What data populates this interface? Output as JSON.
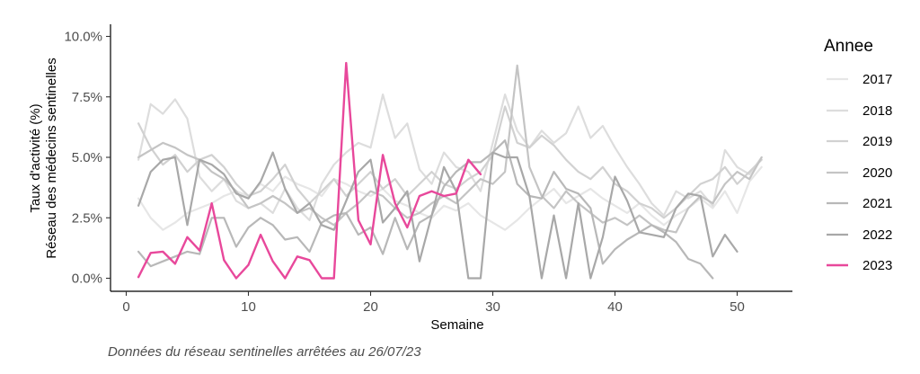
{
  "chart_data": {
    "type": "line",
    "xlabel": "Semaine",
    "ylabel_line1": "Taux d'activité (%)",
    "ylabel_line2": "Réseau des médecins sentinelles",
    "xlim": [
      0,
      55
    ],
    "ylim": [
      0,
      10
    ],
    "x_ticks": [
      0,
      10,
      20,
      30,
      40,
      50
    ],
    "x_tick_labels": [
      "0",
      "10",
      "20",
      "30",
      "40",
      "50"
    ],
    "y_ticks": [
      0,
      2.5,
      5,
      7.5,
      10
    ],
    "y_tick_labels": [
      "0.0%",
      "2.5%",
      "5.0%",
      "7.5%",
      "10.0%"
    ],
    "grid": false,
    "legend_title": "Annee",
    "legend_position": "right",
    "caption": "Données du réseau sentinelles arrêtées au  26/07/23",
    "series": [
      {
        "name": "2017",
        "color": "#e6e6e6",
        "x": [
          1,
          2,
          3,
          4,
          5,
          6,
          7,
          8,
          9,
          10,
          11,
          12,
          13,
          14,
          15,
          16,
          17,
          18,
          19,
          20,
          21,
          22,
          23,
          24,
          25,
          26,
          27,
          28,
          29,
          30,
          31,
          32,
          33,
          34,
          35,
          36,
          37,
          38,
          39,
          40,
          41,
          42,
          43,
          44,
          45,
          46,
          47,
          48,
          49,
          50,
          51,
          52
        ],
        "values": [
          3.3,
          2.5,
          2.0,
          2.3,
          2.7,
          2.9,
          3.1,
          3.4,
          3.6,
          3.4,
          3.9,
          3.6,
          4.2,
          3.9,
          3.7,
          3.4,
          4.1,
          3.9,
          3.6,
          3.4,
          3.7,
          3.2,
          3.0,
          2.7,
          2.5,
          3.0,
          2.8,
          3.1,
          2.6,
          2.3,
          2.0,
          2.4,
          2.9,
          3.3,
          3.7,
          3.1,
          3.4,
          3.7,
          3.3,
          3.0,
          2.7,
          3.1,
          2.6,
          2.2,
          2.6,
          2.9,
          3.3,
          2.9,
          3.6,
          2.7,
          4.0,
          4.6
        ]
      },
      {
        "name": "2018",
        "color": "#dddddd",
        "x": [
          1,
          2,
          3,
          4,
          5,
          6,
          7,
          8,
          9,
          10,
          11,
          12,
          13,
          14,
          15,
          16,
          17,
          18,
          19,
          20,
          21,
          22,
          23,
          24,
          25,
          26,
          27,
          28,
          29,
          30,
          31,
          32,
          33,
          34,
          35,
          36,
          37,
          38,
          39,
          40,
          41,
          42,
          43,
          44,
          45,
          46,
          47,
          48,
          49,
          50,
          51,
          52
        ],
        "values": [
          4.9,
          7.2,
          6.8,
          7.4,
          6.6,
          4.2,
          3.6,
          4.1,
          3.2,
          2.9,
          3.1,
          2.7,
          3.7,
          2.9,
          2.4,
          3.9,
          4.7,
          5.2,
          5.6,
          5.4,
          7.6,
          5.8,
          6.4,
          4.5,
          3.9,
          5.2,
          4.6,
          4.4,
          3.6,
          5.6,
          7.6,
          6.1,
          5.4,
          6.1,
          5.6,
          6.0,
          7.1,
          5.8,
          6.3,
          5.4,
          4.6,
          3.9,
          3.1,
          2.6,
          3.6,
          3.3,
          3.6,
          3.0,
          5.3,
          4.6,
          4.3,
          5.0
        ]
      },
      {
        "name": "2019",
        "color": "#d1d1d1",
        "x": [
          1,
          2,
          3,
          4,
          5,
          6,
          7,
          8,
          9,
          10,
          11,
          12,
          13,
          14,
          15,
          16,
          17,
          18,
          19,
          20,
          21,
          22,
          23,
          24,
          25,
          26,
          27,
          28,
          29,
          30,
          31,
          32,
          33,
          34,
          35,
          36,
          37,
          38,
          39,
          40,
          41,
          42,
          43,
          44,
          45,
          46,
          47,
          48,
          49,
          50,
          51,
          52
        ],
        "values": [
          6.4,
          5.4,
          4.7,
          5.1,
          4.4,
          4.9,
          5.1,
          4.6,
          3.9,
          3.4,
          3.6,
          4.1,
          4.7,
          3.7,
          3.1,
          3.6,
          4.1,
          3.4,
          3.9,
          4.4,
          3.7,
          4.1,
          3.4,
          3.9,
          4.4,
          3.9,
          3.7,
          4.1,
          4.4,
          5.1,
          7.1,
          5.6,
          5.4,
          5.9,
          5.5,
          4.9,
          4.4,
          4.1,
          4.6,
          3.9,
          3.6,
          3.1,
          2.9,
          2.5,
          2.9,
          3.4,
          3.9,
          4.1,
          4.6,
          3.9,
          4.4,
          4.9
        ]
      },
      {
        "name": "2020",
        "color": "#c4c4c4",
        "x": [
          1,
          2,
          3,
          4,
          5,
          6,
          7,
          8,
          9,
          10,
          11,
          12,
          13,
          14,
          15,
          16,
          17,
          18,
          19,
          20,
          21,
          22,
          23,
          24,
          25,
          26,
          27,
          28,
          29,
          30,
          31,
          32,
          33,
          34,
          35,
          36,
          37,
          38,
          39,
          40,
          41,
          42,
          43,
          44,
          45,
          46,
          47,
          48,
          49,
          50,
          51,
          52
        ],
        "values": [
          5.0,
          5.3,
          5.6,
          5.4,
          5.1,
          4.9,
          4.4,
          4.1,
          3.6,
          2.9,
          3.1,
          3.4,
          3.1,
          2.7,
          2.9,
          2.5,
          2.2,
          2.7,
          3.1,
          3.6,
          3.4,
          2.9,
          2.5,
          2.7,
          3.1,
          3.4,
          3.1,
          3.6,
          4.1,
          3.9,
          4.4,
          8.8,
          4.6,
          3.4,
          2.9,
          3.6,
          3.1,
          2.7,
          2.3,
          2.5,
          2.2,
          2.6,
          2.2,
          2.0,
          1.9,
          2.9,
          3.4,
          3.1,
          3.9,
          4.4,
          4.1,
          5.0
        ]
      },
      {
        "name": "2021",
        "color": "#b8b8b8",
        "x": [
          1,
          2,
          3,
          4,
          5,
          6,
          7,
          8,
          9,
          10,
          11,
          12,
          13,
          14,
          15,
          16,
          17,
          18,
          19,
          20,
          21,
          22,
          23,
          24,
          25,
          26,
          27,
          28,
          29,
          30,
          31,
          32,
          33,
          34,
          35,
          36,
          37,
          38,
          39,
          40,
          41,
          42,
          43,
          44,
          45,
          46,
          47,
          48
        ],
        "values": [
          1.1,
          0.5,
          0.7,
          0.9,
          1.1,
          1.0,
          2.5,
          2.5,
          1.3,
          2.1,
          2.5,
          2.2,
          1.6,
          1.7,
          1.1,
          2.3,
          2.6,
          2.7,
          1.8,
          2.1,
          1.0,
          2.5,
          1.2,
          2.3,
          2.6,
          3.8,
          4.4,
          4.8,
          4.8,
          5.2,
          5.7,
          3.9,
          3.4,
          3.3,
          4.4,
          3.7,
          3.5,
          2.9,
          0.6,
          1.2,
          1.6,
          1.9,
          2.2,
          1.9,
          1.5,
          0.8,
          0.6,
          0.0
        ]
      },
      {
        "name": "2022",
        "color": "#a8a8a8",
        "x": [
          1,
          2,
          3,
          4,
          5,
          6,
          7,
          8,
          9,
          10,
          11,
          12,
          13,
          14,
          15,
          16,
          17,
          18,
          19,
          20,
          21,
          22,
          23,
          24,
          25,
          26,
          27,
          28,
          29,
          30,
          31,
          32,
          33,
          34,
          35,
          36,
          37,
          38,
          39,
          40,
          41,
          42,
          43,
          44,
          45,
          46,
          47,
          48,
          49,
          50
        ],
        "values": [
          3.0,
          4.4,
          4.9,
          5.0,
          2.2,
          4.9,
          4.7,
          4.3,
          3.5,
          3.3,
          4.0,
          5.2,
          3.7,
          2.7,
          3.1,
          2.2,
          2.0,
          3.2,
          4.4,
          4.9,
          2.3,
          2.9,
          3.6,
          0.7,
          2.6,
          4.6,
          3.6,
          0.0,
          0.0,
          5.2,
          5.0,
          5.0,
          3.4,
          0.0,
          2.6,
          0.0,
          3.1,
          0.0,
          1.7,
          4.2,
          3.2,
          1.9,
          1.8,
          1.7,
          2.9,
          3.5,
          3.4,
          0.9,
          1.8,
          1.1
        ]
      },
      {
        "name": "2023",
        "color": "#e8489b",
        "x": [
          1,
          2,
          3,
          4,
          5,
          6,
          7,
          8,
          9,
          10,
          11,
          12,
          13,
          14,
          15,
          16,
          17,
          18,
          19,
          20,
          21,
          22,
          23,
          24,
          25,
          26,
          27,
          28,
          29
        ],
        "values": [
          0.05,
          1.05,
          1.1,
          0.6,
          1.7,
          1.15,
          3.1,
          0.75,
          0.0,
          0.55,
          1.8,
          0.7,
          0.0,
          0.9,
          0.75,
          0.0,
          0.0,
          8.9,
          2.4,
          1.4,
          5.1,
          3.1,
          2.1,
          3.4,
          3.6,
          3.4,
          3.5,
          4.9,
          4.3
        ]
      }
    ]
  }
}
